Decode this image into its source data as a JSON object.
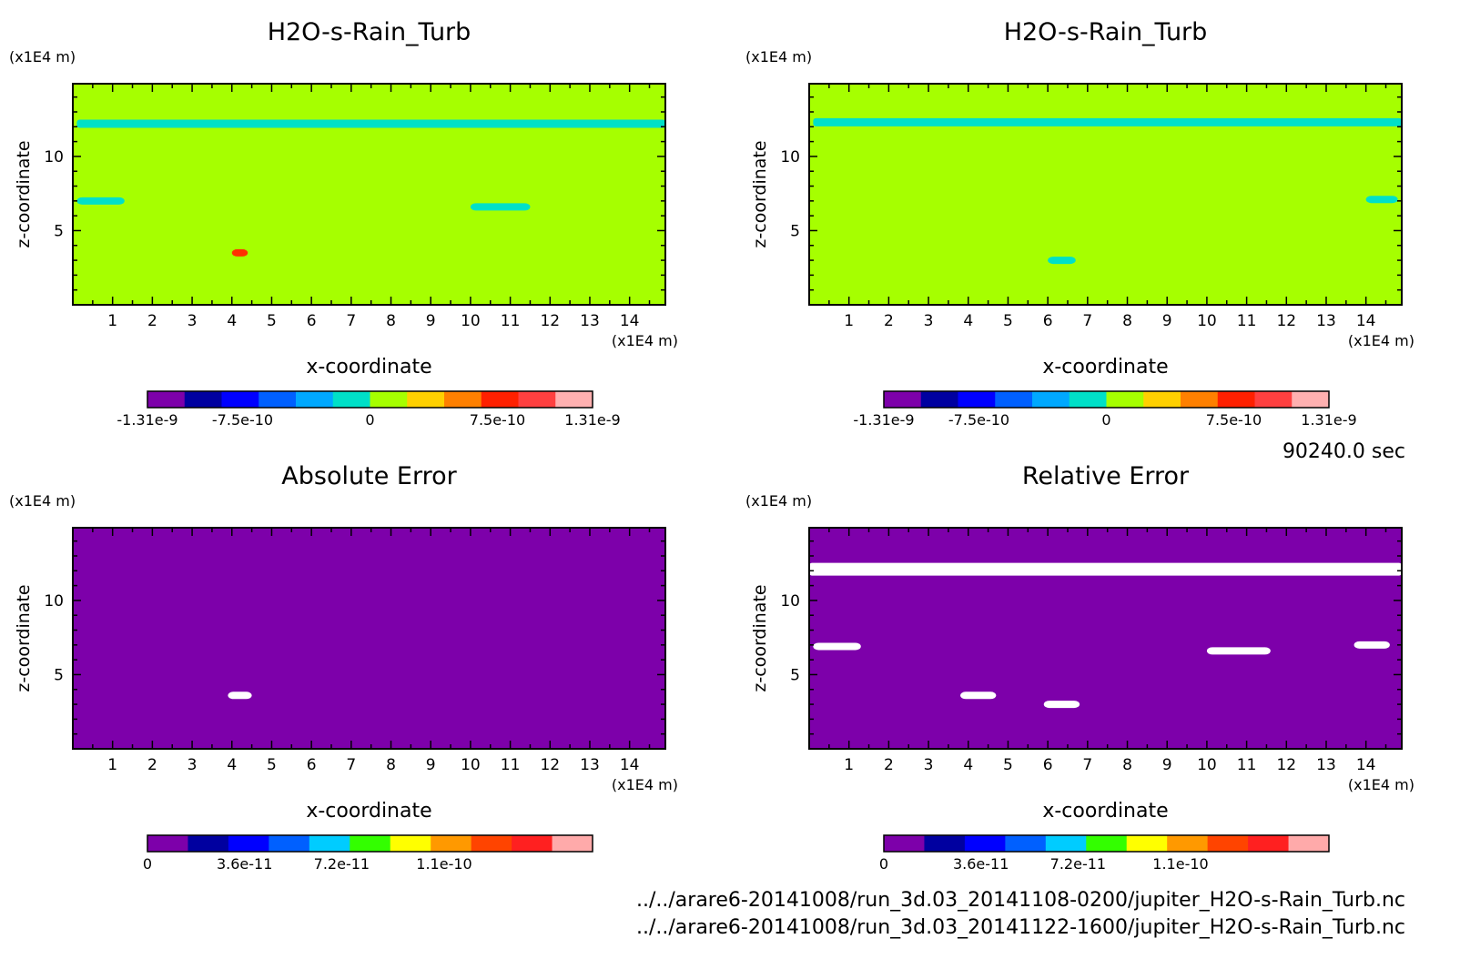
{
  "chart_data": [
    {
      "type": "heatmap",
      "title": "H2O-s-Rain_Turb",
      "unit_y": "(x1E4 m)",
      "unit_x": "(x1E4 m)",
      "xlabel": "x-coordinate",
      "ylabel": "z-coordinate",
      "x_ticks": [
        1,
        2,
        3,
        4,
        5,
        6,
        7,
        8,
        9,
        10,
        11,
        12,
        13,
        14
      ],
      "y_ticks": [
        5,
        10
      ],
      "xlim": [
        0,
        14.9
      ],
      "ylim": [
        0,
        14.9
      ],
      "field_color": "#a6ff00",
      "features": [
        {
          "x": [
            0.1,
            14.9
          ],
          "y": 12.2,
          "color": "#00e0c8"
        },
        {
          "x": [
            0.1,
            1.3
          ],
          "y": 7.0,
          "color": "#00e0c8"
        },
        {
          "x": [
            10.0,
            11.5
          ],
          "y": 6.6,
          "color": "#00e0c8"
        },
        {
          "x": [
            4.0,
            4.4
          ],
          "y": 3.5,
          "color": "#ff3000"
        }
      ],
      "colorbar": {
        "colors": [
          "#7d00aa",
          "#0000a0",
          "#0000ff",
          "#0060ff",
          "#00a8ff",
          "#00e0c8",
          "#a6ff00",
          "#ffd000",
          "#ff8000",
          "#ff2000",
          "#ff4040",
          "#ffb0b0"
        ],
        "labels": [
          "-1.31e-9",
          "-7.5e-10",
          "0",
          "7.5e-10",
          "1.31e-9"
        ],
        "label_values": [
          -1.31e-09,
          -7.5e-10,
          0,
          7.5e-10,
          1.31e-09
        ],
        "range": [
          -1.31e-09,
          1.31e-09
        ]
      }
    },
    {
      "type": "heatmap",
      "title": "H2O-s-Rain_Turb",
      "unit_y": "(x1E4 m)",
      "unit_x": "(x1E4 m)",
      "xlabel": "x-coordinate",
      "ylabel": "z-coordinate",
      "x_ticks": [
        1,
        2,
        3,
        4,
        5,
        6,
        7,
        8,
        9,
        10,
        11,
        12,
        13,
        14
      ],
      "y_ticks": [
        5,
        10
      ],
      "xlim": [
        0,
        14.9
      ],
      "ylim": [
        0,
        14.9
      ],
      "field_color": "#a6ff00",
      "features": [
        {
          "x": [
            0.1,
            14.9
          ],
          "y": 12.3,
          "color": "#00e0c8"
        },
        {
          "x": [
            14.0,
            14.8
          ],
          "y": 7.1,
          "color": "#00e0c8"
        },
        {
          "x": [
            6.0,
            6.7
          ],
          "y": 3.0,
          "color": "#00e0c8"
        }
      ],
      "colorbar": {
        "colors": [
          "#7d00aa",
          "#0000a0",
          "#0000ff",
          "#0060ff",
          "#00a8ff",
          "#00e0c8",
          "#a6ff00",
          "#ffd000",
          "#ff8000",
          "#ff2000",
          "#ff4040",
          "#ffb0b0"
        ],
        "labels": [
          "-1.31e-9",
          "-7.5e-10",
          "0",
          "7.5e-10",
          "1.31e-9"
        ],
        "label_values": [
          -1.31e-09,
          -7.5e-10,
          0,
          7.5e-10,
          1.31e-09
        ],
        "range": [
          -1.31e-09,
          1.31e-09
        ]
      }
    },
    {
      "type": "heatmap",
      "title": "Absolute Error",
      "unit_y": "(x1E4 m)",
      "unit_x": "(x1E4 m)",
      "xlabel": "x-coordinate",
      "ylabel": "z-coordinate",
      "x_ticks": [
        1,
        2,
        3,
        4,
        5,
        6,
        7,
        8,
        9,
        10,
        11,
        12,
        13,
        14
      ],
      "y_ticks": [
        5,
        10
      ],
      "xlim": [
        0,
        14.9
      ],
      "ylim": [
        0,
        14.9
      ],
      "field_color": "#7d00aa",
      "features": [
        {
          "x": [
            3.9,
            4.5
          ],
          "y": 3.6,
          "color": "#ffffff"
        }
      ],
      "colorbar": {
        "colors": [
          "#7d00aa",
          "#0000a0",
          "#0000ff",
          "#0060ff",
          "#00ccff",
          "#33ff00",
          "#ffff00",
          "#ff9900",
          "#ff4400",
          "#ff2020",
          "#ffaaaa"
        ],
        "labels": [
          "0",
          "3.6e-11",
          "7.2e-11",
          "1.1e-10"
        ],
        "label_values": [
          0,
          3.6e-11,
          7.2e-11,
          1.1e-10
        ],
        "range": [
          0,
          1.65e-10
        ]
      }
    },
    {
      "type": "heatmap",
      "title": "Relative Error",
      "unit_y": "(x1E4 m)",
      "unit_x": "(x1E4 m)",
      "xlabel": "x-coordinate",
      "ylabel": "z-coordinate",
      "x_ticks": [
        1,
        2,
        3,
        4,
        5,
        6,
        7,
        8,
        9,
        10,
        11,
        12,
        13,
        14
      ],
      "y_ticks": [
        5,
        10
      ],
      "xlim": [
        0,
        14.9
      ],
      "ylim": [
        0,
        14.9
      ],
      "field_color": "#7d00aa",
      "features": [
        {
          "x": [
            0.0,
            14.9
          ],
          "y": 12.1,
          "color": "#ffffff"
        },
        {
          "x": [
            0.1,
            1.3
          ],
          "y": 6.9,
          "color": "#ffffff"
        },
        {
          "x": [
            10.0,
            11.6
          ],
          "y": 6.6,
          "color": "#ffffff"
        },
        {
          "x": [
            13.7,
            14.6
          ],
          "y": 7.0,
          "color": "#ffffff"
        },
        {
          "x": [
            3.8,
            4.7
          ],
          "y": 3.6,
          "color": "#ffffff"
        },
        {
          "x": [
            5.9,
            6.8
          ],
          "y": 3.0,
          "color": "#ffffff"
        }
      ],
      "colorbar": {
        "colors": [
          "#7d00aa",
          "#0000a0",
          "#0000ff",
          "#0060ff",
          "#00ccff",
          "#33ff00",
          "#ffff00",
          "#ff9900",
          "#ff4400",
          "#ff2020",
          "#ffaaaa"
        ],
        "labels": [
          "0",
          "3.6e-11",
          "7.2e-11",
          "1.1e-10"
        ],
        "label_values": [
          0,
          3.6e-11,
          7.2e-11,
          1.1e-10
        ],
        "range": [
          0,
          1.65e-10
        ]
      }
    }
  ],
  "time_label": "90240.0 sec",
  "file_paths": [
    "../../arare6-20141008/run_3d.03_20141108-0200/jupiter_H2O-s-Rain_Turb.nc",
    "../../arare6-20141008/run_3d.03_20141122-1600/jupiter_H2O-s-Rain_Turb.nc"
  ]
}
